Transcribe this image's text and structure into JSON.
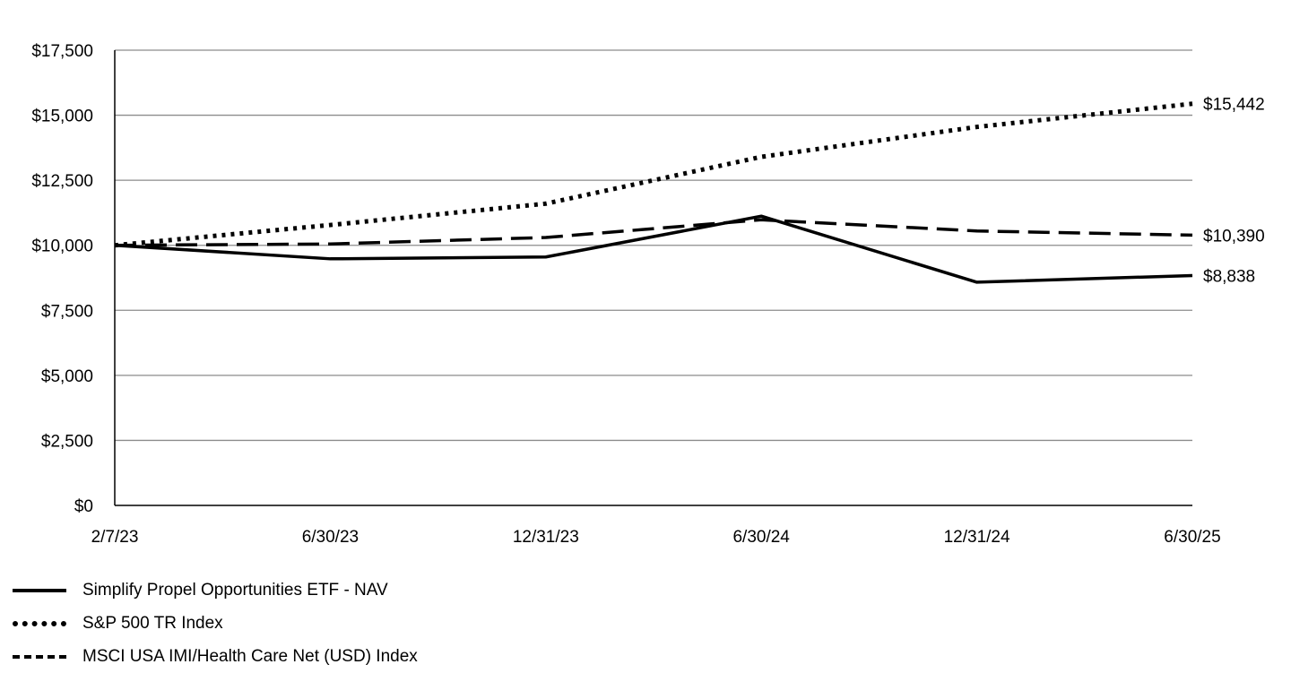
{
  "chart_data": {
    "type": "line",
    "title": "",
    "xlabel": "",
    "ylabel": "",
    "categories": [
      "2/7/23",
      "6/30/23",
      "12/31/23",
      "6/30/24",
      "12/31/24",
      "6/30/25"
    ],
    "ylim": [
      0,
      17500
    ],
    "yticks": [
      0,
      2500,
      5000,
      7500,
      10000,
      12500,
      15000,
      17500
    ],
    "ytick_labels": [
      "$0",
      "$2,500",
      "$5,000",
      "$7,500",
      "$10,000",
      "$12,500",
      "$15,000",
      "$17,500"
    ],
    "grid": true,
    "legend_position": "bottom-left",
    "series": [
      {
        "name": "Simplify Propel Opportunities ETF - NAV",
        "style": "solid",
        "values": [
          10000,
          9480,
          9550,
          11120,
          8580,
          8838
        ],
        "end_label": "$8,838"
      },
      {
        "name": "S&P 500 TR Index",
        "style": "dotted",
        "values": [
          10000,
          10780,
          11600,
          13400,
          14550,
          15442
        ],
        "end_label": "$15,442"
      },
      {
        "name": "MSCI USA IMI/Health Care Net (USD) Index",
        "style": "dashed",
        "values": [
          10000,
          10050,
          10300,
          10980,
          10550,
          10390
        ],
        "end_label": "$10,390"
      }
    ]
  }
}
